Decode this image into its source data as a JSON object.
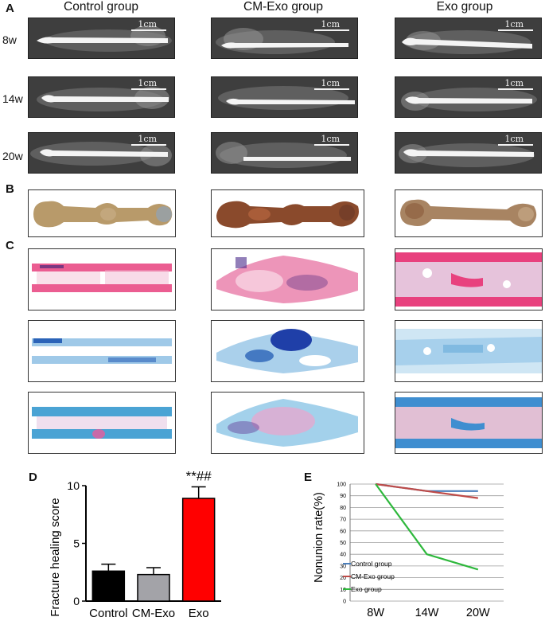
{
  "panels": {
    "a": "A",
    "b": "B",
    "c": "C",
    "d": "D",
    "e": "E"
  },
  "columns": [
    "Control group",
    "CM-Exo group",
    "Exo group"
  ],
  "rows": [
    "8w",
    "14w",
    "20w"
  ],
  "scale_bar": "1cm",
  "colors": {
    "he_pink": "#e8417e",
    "alcian_blue": "#2b63b8",
    "masson_blue": "#4aa3d4",
    "bar_control": "#000000",
    "bar_cmexo": "#a3a3a8",
    "bar_exo": "#ff0000",
    "line_control": "#4a7ebb",
    "line_cmexo": "#be4b48",
    "line_exo": "#2eb83c"
  },
  "chart_data": [
    {
      "type": "bar",
      "ylabel": "Fracture healing score",
      "categories": [
        "Control",
        "CM-Exo",
        "Exo"
      ],
      "values": [
        2.6,
        2.3,
        8.9
      ],
      "errors": [
        0.6,
        0.6,
        1.0
      ],
      "ylim": [
        0,
        10
      ],
      "yticks": [
        "0",
        "5",
        "10"
      ],
      "annotation": "**##"
    },
    {
      "type": "line",
      "ylabel": "Nonunion rate(%)",
      "categories": [
        "8W",
        "14W",
        "20W"
      ],
      "ylim": [
        0,
        100
      ],
      "yticks": [
        "0",
        "10",
        "20",
        "30",
        "40",
        "50",
        "60",
        "70",
        "80",
        "90",
        "100"
      ],
      "grid": true,
      "legend_position": "bottom-left",
      "series": [
        {
          "name": "Control group",
          "values": [
            100,
            94,
            94
          ]
        },
        {
          "name": "CM-Exo group",
          "values": [
            100,
            94,
            88
          ]
        },
        {
          "name": "Exo group",
          "values": [
            100,
            40,
            27
          ]
        }
      ]
    }
  ]
}
